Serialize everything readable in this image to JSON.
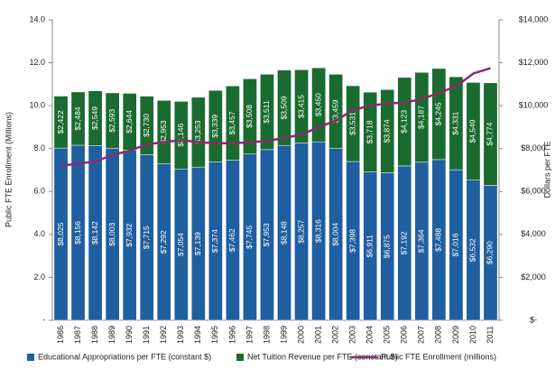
{
  "chart_data": {
    "type": "bar",
    "stacked": true,
    "categories": [
      "1986",
      "1987",
      "1988",
      "1989",
      "1990",
      "1991",
      "1992",
      "1993",
      "1994",
      "1995",
      "1996",
      "1997",
      "1998",
      "1999",
      "2000",
      "2001",
      "2002",
      "2003",
      "2004",
      "2005",
      "2006",
      "2007",
      "2008",
      "2009",
      "2010",
      "2011"
    ],
    "series": [
      {
        "name": "Educational Appropriations per FTE (constant $)",
        "color": "#1f5fa0",
        "axis": "y2",
        "values": [
          8025,
          8156,
          8142,
          8003,
          7932,
          7715,
          7292,
          7054,
          7139,
          7374,
          7462,
          7745,
          7953,
          8148,
          8257,
          8316,
          8004,
          7398,
          6911,
          6875,
          7192,
          7364,
          7488,
          7016,
          6532,
          6290
        ],
        "value_labels": [
          "$8,025",
          "$8,156",
          "$8,142",
          "$8,003",
          "$7,932",
          "$7,715",
          "$7,292",
          "$7,054",
          "$7,139",
          "$7,374",
          "$7,462",
          "$7,745",
          "$7,953",
          "$8,148",
          "$8,257",
          "$8,316",
          "$8,004",
          "$7,398",
          "$6,911",
          "$6,875",
          "$7,192",
          "$7,364",
          "$7,488",
          "$7,016",
          "$6,532",
          "$6,290"
        ]
      },
      {
        "name": "Net Tuition Revenue per FTE (constant $)",
        "color": "#1a6b2f",
        "axis": "y2",
        "values": [
          2422,
          2484,
          2549,
          2593,
          2644,
          2730,
          2953,
          3146,
          3253,
          3339,
          3457,
          3508,
          3511,
          3509,
          3415,
          3450,
          3459,
          3531,
          3718,
          3874,
          4123,
          4187,
          4245,
          4331,
          4549,
          4774
        ],
        "value_labels": [
          "$2,422",
          "$2,484",
          "$2,549",
          "$2,593",
          "$2,644",
          "$2,730",
          "$2,953",
          "$3,146",
          "$3,253",
          "$3,339",
          "$3,457",
          "$3,508",
          "$3,511",
          "$3,509",
          "$3,415",
          "$3,450",
          "$3,459",
          "$3,531",
          "$3,718",
          "$3,874",
          "$4,123",
          "$4,187",
          "$4,245",
          "$4,331",
          "$4,549",
          "$4,774"
        ]
      },
      {
        "name": "Public FTE Enrollment (millions)",
        "color": "#8b2a6e",
        "type": "line",
        "values": [
          7.2,
          7.3,
          7.4,
          7.7,
          7.9,
          8.2,
          8.3,
          8.4,
          8.3,
          8.25,
          8.25,
          8.3,
          8.35,
          8.5,
          8.65,
          9.0,
          9.3,
          9.8,
          10.0,
          10.1,
          10.15,
          10.3,
          10.6,
          10.9,
          11.5,
          11.75
        ]
      }
    ],
    "ylabel": "Public FTE Enrollment (Millions)",
    "y2label": "Dollars per FTE",
    "ylim": [
      0,
      14
    ],
    "yticks": [
      {
        "value": 0,
        "label": "-"
      },
      {
        "value": 2,
        "label": "2.0"
      },
      {
        "value": 4,
        "label": "4.0"
      },
      {
        "value": 6,
        "label": "6.0"
      },
      {
        "value": 8,
        "label": "8.0"
      },
      {
        "value": 10,
        "label": "10.0"
      },
      {
        "value": 12,
        "label": "12.0"
      },
      {
        "value": 14,
        "label": "14.0"
      }
    ],
    "y2lim": [
      0,
      14000
    ],
    "y2ticks": [
      {
        "value": 0,
        "label": "$-"
      },
      {
        "value": 2000,
        "label": "$2,000"
      },
      {
        "value": 4000,
        "label": "$4,000"
      },
      {
        "value": 6000,
        "label": "$6,000"
      },
      {
        "value": 8000,
        "label": "$8,000"
      },
      {
        "value": 10000,
        "label": "$10,000"
      },
      {
        "value": 12000,
        "label": "$12,000"
      },
      {
        "value": 14000,
        "label": "$14,000"
      }
    ],
    "grid": false,
    "legend": "bottom"
  }
}
